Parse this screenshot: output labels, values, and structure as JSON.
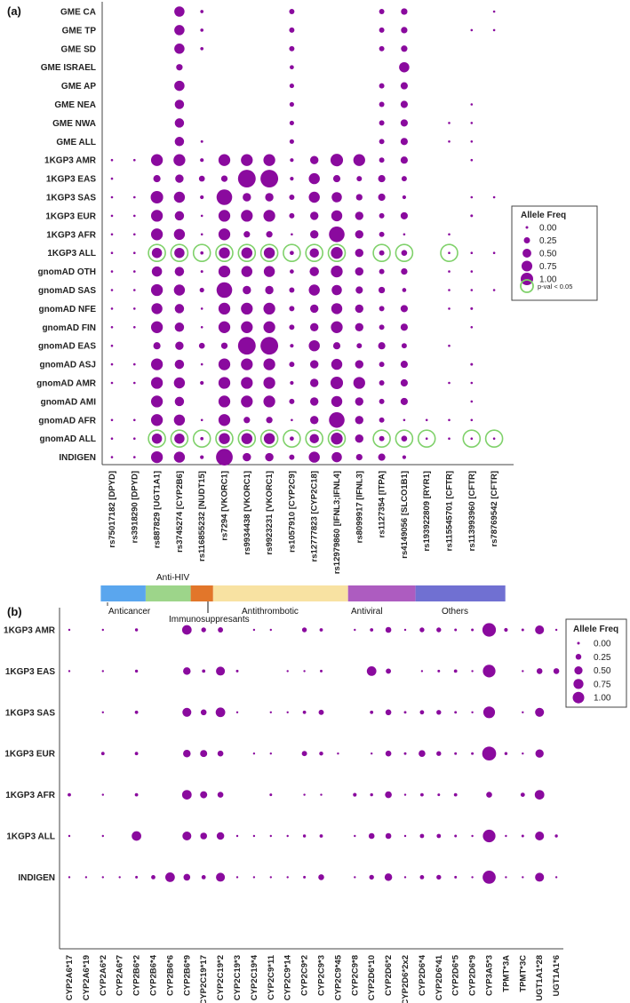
{
  "chart_data": [
    {
      "panel_label": "(a)",
      "type": "scatter",
      "encoding": "dot area ~ allele frequency; green ring = p-val < 0.05",
      "rows": [
        "GME CA",
        "GME TP",
        "GME SD",
        "GME ISRAEL",
        "GME AP",
        "GME NEA",
        "GME NWA",
        "GME ALL",
        "1KGP3 AMR",
        "1KGP3 EAS",
        "1KGP3 SAS",
        "1KGP3 EUR",
        "1KGP3 AFR",
        "1KGP3 ALL",
        "gnomAD OTH",
        "gnomAD SAS",
        "gnomAD NFE",
        "gnomAD FIN",
        "gnomAD EAS",
        "gnomAD ASJ",
        "gnomAD AMR",
        "gnomAD AMI",
        "gnomAD AFR",
        "gnomAD ALL",
        "INDIGEN"
      ],
      "columns": [
        "rs75017182 [DPYD]",
        "rs3918290 [DPYD]",
        "rs887829 [UGT1A1]",
        "rs3745274 [CYP2B6]",
        "rs116855232 [NUDT15]",
        "rs7294 [VKORC1]",
        "rs9934438 [VKORC1]",
        "rs9923231 [VKORC1]",
        "rs1057910 [CYP2C9]",
        "rs12777823 [CYP2C18]",
        "rs12979860 [IFNL3;IFNL4]",
        "rs8099917 [IFNL3]",
        "rs1127354 [ITPA]",
        "rs4149056 [SLCO1B1]",
        "rs193922809 [RYR1]",
        "rs115545701 [CFTR]",
        "rs113993960 [CFTR]",
        "rs78769542 [CFTR]"
      ],
      "values": [
        [
          null,
          null,
          null,
          0.3,
          0.03,
          null,
          null,
          null,
          0.08,
          null,
          null,
          null,
          0.08,
          0.12,
          null,
          null,
          null,
          0.01
        ],
        [
          null,
          null,
          null,
          0.3,
          0.03,
          null,
          null,
          null,
          0.08,
          null,
          null,
          null,
          0.08,
          0.12,
          null,
          null,
          0.01,
          0.01
        ],
        [
          null,
          null,
          null,
          0.3,
          0.03,
          null,
          null,
          null,
          0.08,
          null,
          null,
          null,
          0.08,
          0.12,
          null,
          null,
          null,
          null
        ],
        [
          null,
          null,
          null,
          0.12,
          null,
          null,
          null,
          null,
          0.05,
          null,
          null,
          null,
          null,
          0.3,
          null,
          null,
          null,
          null
        ],
        [
          null,
          null,
          null,
          0.3,
          null,
          null,
          null,
          null,
          0.06,
          null,
          null,
          null,
          0.08,
          0.15,
          null,
          null,
          null,
          null
        ],
        [
          null,
          null,
          null,
          0.25,
          null,
          null,
          null,
          null,
          0.06,
          null,
          null,
          null,
          0.08,
          0.15,
          null,
          null,
          0.01,
          null
        ],
        [
          null,
          null,
          null,
          0.25,
          null,
          null,
          null,
          null,
          0.06,
          null,
          null,
          null,
          0.08,
          0.15,
          null,
          0.01,
          0.01,
          null
        ],
        [
          null,
          null,
          null,
          0.25,
          0.02,
          null,
          null,
          null,
          0.06,
          null,
          null,
          null,
          0.08,
          0.15,
          null,
          0.01,
          0.01,
          null
        ],
        [
          0.01,
          0.005,
          0.4,
          0.4,
          0.04,
          0.4,
          0.4,
          0.4,
          0.04,
          0.2,
          0.45,
          0.4,
          0.08,
          0.15,
          null,
          null,
          0.01,
          null
        ],
        [
          0.005,
          null,
          0.15,
          0.2,
          0.1,
          0.12,
          0.9,
          0.9,
          0.04,
          0.35,
          0.15,
          0.08,
          0.15,
          0.08,
          null,
          null,
          null,
          null
        ],
        [
          0.01,
          0.005,
          0.45,
          0.35,
          0.04,
          0.7,
          0.2,
          0.2,
          0.08,
          0.35,
          0.3,
          0.12,
          0.15,
          0.04,
          null,
          null,
          0.01,
          0.01
        ],
        [
          0.01,
          0.005,
          0.4,
          0.25,
          0.01,
          0.4,
          0.4,
          0.4,
          0.08,
          0.2,
          0.35,
          0.2,
          0.08,
          0.15,
          null,
          null,
          0.02,
          null
        ],
        [
          0.01,
          0.005,
          0.4,
          0.35,
          0.01,
          0.4,
          0.12,
          0.12,
          0.01,
          0.2,
          0.7,
          0.2,
          0.08,
          0.01,
          null,
          0.01,
          null,
          null
        ],
        [
          0.01,
          0.005,
          0.3,
          0.3,
          0.03,
          0.35,
          0.35,
          0.35,
          0.05,
          0.25,
          0.4,
          0.2,
          0.08,
          0.1,
          null,
          0.01,
          0.01,
          0.005
        ],
        [
          0.01,
          0.005,
          0.3,
          0.25,
          0.02,
          0.4,
          0.35,
          0.35,
          0.05,
          0.25,
          0.4,
          0.2,
          0.08,
          0.12,
          null,
          0.01,
          0.01,
          null
        ],
        [
          0.01,
          0.005,
          0.4,
          0.35,
          0.06,
          0.7,
          0.2,
          0.2,
          0.08,
          0.35,
          0.3,
          0.15,
          0.12,
          0.05,
          null,
          0.01,
          0.01,
          0.01
        ],
        [
          0.01,
          0.005,
          0.35,
          0.25,
          0.01,
          0.4,
          0.4,
          0.4,
          0.08,
          0.2,
          0.35,
          0.2,
          0.08,
          0.15,
          null,
          0.01,
          0.02,
          null
        ],
        [
          0.01,
          0.005,
          0.4,
          0.25,
          0.01,
          0.4,
          0.4,
          0.4,
          0.08,
          0.2,
          0.4,
          0.2,
          0.08,
          0.15,
          null,
          null,
          0.01,
          null
        ],
        [
          0.005,
          null,
          0.15,
          0.2,
          0.1,
          0.12,
          0.9,
          0.9,
          0.04,
          0.35,
          0.15,
          0.08,
          0.15,
          0.08,
          null,
          0.005,
          null,
          null
        ],
        [
          0.01,
          0.005,
          0.4,
          0.25,
          0.01,
          0.4,
          0.4,
          0.4,
          0.08,
          0.2,
          0.35,
          0.2,
          0.08,
          0.15,
          null,
          null,
          0.02,
          null
        ],
        [
          0.01,
          0.005,
          0.4,
          0.35,
          0.04,
          0.4,
          0.4,
          0.4,
          0.04,
          0.2,
          0.45,
          0.4,
          0.08,
          0.15,
          null,
          0.01,
          0.01,
          null
        ],
        [
          null,
          null,
          0.4,
          0.25,
          null,
          0.4,
          0.4,
          0.4,
          0.08,
          0.2,
          0.35,
          0.2,
          0.08,
          0.15,
          null,
          null,
          0.01,
          null
        ],
        [
          0.01,
          0.005,
          0.4,
          0.35,
          0.01,
          0.4,
          0.12,
          0.12,
          0.01,
          0.2,
          0.7,
          0.2,
          0.08,
          0.01,
          0.005,
          0.01,
          0.005,
          null
        ],
        [
          0.01,
          0.005,
          0.3,
          0.3,
          0.03,
          0.35,
          0.35,
          0.35,
          0.05,
          0.25,
          0.4,
          0.2,
          0.08,
          0.1,
          0.005,
          0.005,
          0.01,
          0.005
        ],
        [
          0.01,
          0.005,
          0.4,
          0.35,
          0.04,
          0.8,
          0.2,
          0.2,
          0.08,
          0.35,
          0.3,
          0.12,
          0.15,
          0.04,
          null,
          null,
          null,
          null
        ]
      ],
      "significant": [
        {
          "row": "1KGP3 ALL",
          "columns": [
            "rs887829 [UGT1A1]",
            "rs3745274 [CYP2B6]",
            "rs116855232 [NUDT15]",
            "rs7294 [VKORC1]",
            "rs9934438 [VKORC1]",
            "rs9923231 [VKORC1]",
            "rs1057910 [CYP2C9]",
            "rs12777823 [CYP2C18]",
            "rs12979860 [IFNL3;IFNL4]",
            "rs1127354 [ITPA]",
            "rs4149056 [SLCO1B1]",
            "rs115545701 [CFTR]"
          ]
        },
        {
          "row": "gnomAD ALL",
          "columns": [
            "rs887829 [UGT1A1]",
            "rs3745274 [CYP2B6]",
            "rs116855232 [NUDT15]",
            "rs7294 [VKORC1]",
            "rs9934438 [VKORC1]",
            "rs9923231 [VKORC1]",
            "rs1057910 [CYP2C9]",
            "rs12777823 [CYP2C18]",
            "rs12979860 [IFNL3;IFNL4]",
            "rs1127354 [ITPA]",
            "rs4149056 [SLCO1B1]",
            "rs193922809 [RYR1]",
            "rs113993960 [CFTR]",
            "rs78769542 [CFTR]"
          ]
        }
      ],
      "legend": {
        "title": "Allele Freq",
        "levels": [
          "0.00",
          "0.25",
          "0.50",
          "0.75",
          "1.00"
        ],
        "sig_label": "p-val < 0.05",
        "position": "right"
      },
      "categories_bar": [
        {
          "label": "Anticancer",
          "color": "#5aa6ee",
          "col_start": 0,
          "col_end": 1
        },
        {
          "label": "Anti-HIV",
          "color": "#9dd58a",
          "col_start": 2,
          "col_end": 3
        },
        {
          "label": "Immunosuppresants",
          "color": "#e2762a",
          "col_start": 4,
          "col_end": 4
        },
        {
          "label": "Antithrombotic",
          "color": "#f8e2a2",
          "col_start": 5,
          "col_end": 10
        },
        {
          "label": "Antiviral",
          "color": "#ad5cc0",
          "col_start": 11,
          "col_end": 13
        },
        {
          "label": "Others",
          "color": "#7070d2",
          "col_start": 14,
          "col_end": 17
        }
      ]
    },
    {
      "panel_label": "(b)",
      "type": "scatter",
      "encoding": "dot area ~ allele frequency",
      "rows": [
        "1KGP3 AMR",
        "1KGP3 EAS",
        "1KGP3 SAS",
        "1KGP3 EUR",
        "1KGP3 AFR",
        "1KGP3 ALL",
        "INDIGEN"
      ],
      "columns": [
        "CYP2A6*17",
        "CYP2A6*19",
        "CYP2A6*2",
        "CYP2A6*7",
        "CYP2B6*2",
        "CYP2B6*4",
        "CYP2B6*6",
        "CYP2B6*9",
        "CYP2C19*17",
        "CYP2C19*2",
        "CYP2C19*3",
        "CYP2C19*4",
        "CYP2C9*11",
        "CYP2C9*14",
        "CYP2C9*2",
        "CYP2C9*3",
        "CYP2C9*45",
        "CYP2C9*8",
        "CYP2D6*10",
        "CYP2D6*2",
        "CYP2D6*2x2",
        "CYP2D6*4",
        "CYP2D6*41",
        "CYP2D6*5",
        "CYP2D6*9",
        "CYP3A5*3",
        "TPMT*3A",
        "TPMT*3C",
        "UGT1A1*28",
        "UGT1A1*6"
      ],
      "values": [
        [
          0.01,
          null,
          0.01,
          null,
          0.04,
          null,
          null,
          0.4,
          0.1,
          0.12,
          null,
          0.005,
          0.005,
          null,
          0.1,
          0.05,
          null,
          0.005,
          0.05,
          0.15,
          0.01,
          0.1,
          0.1,
          0.03,
          0.03,
          0.8,
          0.06,
          0.03,
          0.35,
          0.01
        ],
        [
          0.005,
          null,
          0.02,
          null,
          0.04,
          null,
          null,
          0.25,
          0.05,
          0.35,
          0.03,
          null,
          null,
          0.005,
          0.01,
          0.03,
          null,
          null,
          0.4,
          0.12,
          null,
          0.01,
          0.03,
          0.05,
          0.01,
          0.7,
          null,
          0.02,
          0.15,
          0.15
        ],
        [
          null,
          null,
          0.01,
          null,
          0.05,
          null,
          null,
          0.35,
          0.15,
          0.4,
          0.01,
          null,
          0.005,
          0.005,
          0.05,
          0.12,
          null,
          null,
          0.05,
          0.15,
          0.03,
          0.08,
          0.1,
          0.03,
          0.01,
          0.6,
          null,
          0.005,
          0.35,
          null
        ],
        [
          null,
          null,
          0.05,
          null,
          0.05,
          null,
          null,
          0.25,
          0.22,
          0.15,
          null,
          0.005,
          0.005,
          null,
          0.12,
          0.07,
          0.005,
          null,
          0.02,
          0.15,
          0.03,
          0.2,
          0.1,
          0.03,
          0.03,
          0.85,
          0.04,
          0.005,
          0.3,
          null
        ],
        [
          0.05,
          null,
          0.005,
          null,
          0.05,
          null,
          null,
          0.4,
          0.22,
          0.15,
          null,
          null,
          0.03,
          null,
          0.01,
          0.005,
          null,
          0.06,
          0.04,
          0.2,
          0.02,
          0.05,
          0.03,
          0.05,
          null,
          0.15,
          null,
          0.08,
          0.4,
          null
        ],
        [
          0.01,
          null,
          0.02,
          null,
          0.4,
          null,
          null,
          0.35,
          0.2,
          0.25,
          0.005,
          0.005,
          0.005,
          0.005,
          0.04,
          0.05,
          null,
          0.01,
          0.15,
          0.15,
          0.02,
          0.08,
          0.08,
          0.03,
          0.02,
          0.7,
          0.02,
          0.03,
          0.35,
          0.04
        ],
        [
          0.01,
          0.005,
          0.005,
          0.005,
          0.03,
          0.08,
          0.4,
          0.2,
          0.08,
          0.35,
          0.02,
          0.005,
          0.005,
          0.01,
          0.03,
          0.15,
          null,
          0.005,
          0.1,
          0.25,
          0.01,
          0.08,
          0.1,
          0.03,
          0.02,
          0.75,
          0.005,
          0.01,
          0.35,
          0.01
        ]
      ],
      "legend": {
        "title": "Allele Freq",
        "levels": [
          "0.00",
          "0.25",
          "0.50",
          "0.75",
          "1.00"
        ],
        "position": "right"
      }
    }
  ]
}
